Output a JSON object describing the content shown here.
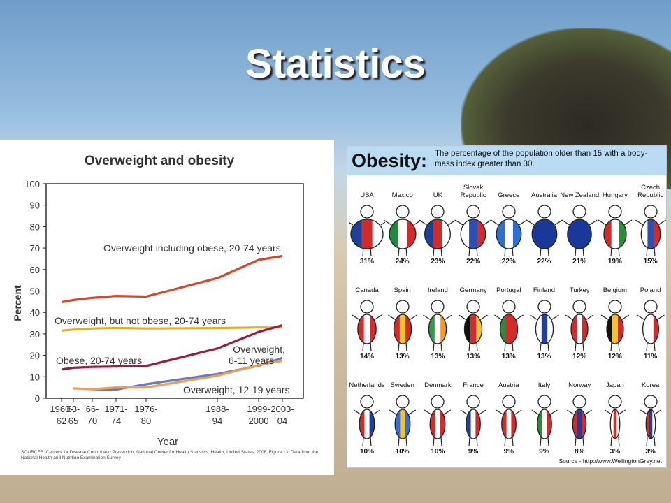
{
  "slide": {
    "title": "Statistics"
  },
  "chart_data": [
    {
      "type": "line",
      "title": "Overweight and obesity",
      "xlabel": "Year",
      "ylabel": "Percent",
      "ylim": [
        0,
        100
      ],
      "yticks": [
        "0",
        "10",
        "20",
        "30",
        "40",
        "50",
        "60",
        "70",
        "80",
        "90",
        "100"
      ],
      "x_ticks": [
        {
          "l1": "1960-",
          "l2": "62"
        },
        {
          "l1": "63-",
          "l2": "65"
        },
        {
          "l1": "66-",
          "l2": "70"
        },
        {
          "l1": "1971-",
          "l2": "74"
        },
        {
          "l1": "1976-",
          "l2": "80"
        },
        {
          "l1": "1988-",
          "l2": "94"
        },
        {
          "l1": "1999-",
          "l2": "2000"
        },
        {
          "l1": "2003-",
          "l2": "04"
        }
      ],
      "grid": false,
      "series": [
        {
          "name": "Overweight including obese, 20-74 years",
          "color": "#d9472b",
          "start_index": 0,
          "values": [
            44.8,
            45.8,
            46.8,
            47.7,
            47.4,
            56.0,
            64.5,
            66.3
          ]
        },
        {
          "name": "Overweight, but not obese, 20-74 years",
          "color": "#d9b12a",
          "start_index": 0,
          "values": [
            31.5,
            32.0,
            32.5,
            32.8,
            32.5,
            32.7,
            33.0,
            33.0
          ]
        },
        {
          "name": "Obese, 20-74 years",
          "color": "#9a1d3f",
          "start_index": 0,
          "values": [
            13.4,
            14.2,
            14.6,
            14.8,
            15.0,
            23.2,
            30.9,
            34.0
          ]
        },
        {
          "name": "Overweight, 6-11 years",
          "color": "#6a7bb6",
          "start_index": 2,
          "values": [
            4.2,
            4.0,
            6.5,
            11.3,
            15.1,
            18.8
          ]
        },
        {
          "name": "Overweight, 12-19 years",
          "color": "#f29e51",
          "start_index": 1,
          "values": [
            4.6,
            4.2,
            5.0,
            5.0,
            10.5,
            15.5,
            17.4
          ]
        }
      ],
      "source": "SOURCES: Centers for Disease Control and Prevention, National Center for Health Statistics, Health, United States, 2006, Figure 13. Data from the National Health and Nutrition Examination Survey"
    },
    {
      "type": "table",
      "title": "Obesity:",
      "subtitle": "The percentage of the population older than 15 with a body-mass index greater than 30.",
      "source": "Source - http://www.WellingtonGrey.net",
      "countries": [
        {
          "name": "USA",
          "pct": "31%",
          "value": 31,
          "colors": [
            "#1f3f99",
            "#d22b2b",
            "#ffffff"
          ]
        },
        {
          "name": "Mexico",
          "pct": "24%",
          "value": 24,
          "colors": [
            "#1e8c3a",
            "#ffffff",
            "#d22b2b"
          ]
        },
        {
          "name": "UK",
          "pct": "23%",
          "value": 23,
          "colors": [
            "#1f3f99",
            "#d22b2b",
            "#ffffff"
          ]
        },
        {
          "name": "Slovak Republic",
          "pct": "22%",
          "value": 22,
          "colors": [
            "#ffffff",
            "#2b4fb3",
            "#d22b2b"
          ]
        },
        {
          "name": "Greece",
          "pct": "22%",
          "value": 22,
          "colors": [
            "#2f6fd0",
            "#ffffff",
            "#2f6fd0"
          ]
        },
        {
          "name": "Australia",
          "pct": "22%",
          "value": 22,
          "colors": [
            "#1a3899",
            "#1a3899",
            "#1a3899"
          ]
        },
        {
          "name": "New Zealand",
          "pct": "21%",
          "value": 21,
          "colors": [
            "#1a3899",
            "#1a3899",
            "#1a3899"
          ]
        },
        {
          "name": "Hungary",
          "pct": "19%",
          "value": 19,
          "colors": [
            "#d22b2b",
            "#ffffff",
            "#2e8b3a"
          ]
        },
        {
          "name": "Czech Republic",
          "pct": "15%",
          "value": 15,
          "colors": [
            "#ffffff",
            "#2b4fb3",
            "#d22b2b"
          ]
        },
        {
          "name": "Canada",
          "pct": "14%",
          "value": 14,
          "colors": [
            "#d22b2b",
            "#ffffff",
            "#d22b2b"
          ]
        },
        {
          "name": "Spain",
          "pct": "13%",
          "value": 13,
          "colors": [
            "#d22b2b",
            "#f2c230",
            "#d22b2b"
          ]
        },
        {
          "name": "Ireland",
          "pct": "13%",
          "value": 13,
          "colors": [
            "#2e9a48",
            "#ffffff",
            "#f29a2e"
          ]
        },
        {
          "name": "Germany",
          "pct": "13%",
          "value": 13,
          "colors": [
            "#111111",
            "#d22b2b",
            "#f2c230"
          ]
        },
        {
          "name": "Portugal",
          "pct": "13%",
          "value": 13,
          "colors": [
            "#2e8b3a",
            "#d22b2b",
            "#d22b2b"
          ]
        },
        {
          "name": "Finland",
          "pct": "13%",
          "value": 13,
          "colors": [
            "#ffffff",
            "#1f3f99",
            "#ffffff"
          ]
        },
        {
          "name": "Turkey",
          "pct": "12%",
          "value": 12,
          "colors": [
            "#d22b2b",
            "#ffffff",
            "#d22b2b"
          ]
        },
        {
          "name": "Belgium",
          "pct": "12%",
          "value": 12,
          "colors": [
            "#111111",
            "#f2c230",
            "#d22b2b"
          ]
        },
        {
          "name": "Poland",
          "pct": "11%",
          "value": 11,
          "colors": [
            "#ffffff",
            "#ffffff",
            "#d22b2b"
          ]
        },
        {
          "name": "Netherlands",
          "pct": "10%",
          "value": 10,
          "colors": [
            "#d22b2b",
            "#ffffff",
            "#1f3f99"
          ]
        },
        {
          "name": "Sweden",
          "pct": "10%",
          "value": 10,
          "colors": [
            "#2f6fd0",
            "#f2c230",
            "#2f6fd0"
          ]
        },
        {
          "name": "Denmark",
          "pct": "10%",
          "value": 10,
          "colors": [
            "#d22b2b",
            "#ffffff",
            "#d22b2b"
          ]
        },
        {
          "name": "France",
          "pct": "9%",
          "value": 9,
          "colors": [
            "#1f3f99",
            "#ffffff",
            "#d22b2b"
          ]
        },
        {
          "name": "Austria",
          "pct": "9%",
          "value": 9,
          "colors": [
            "#d22b2b",
            "#ffffff",
            "#d22b2b"
          ]
        },
        {
          "name": "Italy",
          "pct": "9%",
          "value": 9,
          "colors": [
            "#2e8b3a",
            "#ffffff",
            "#d22b2b"
          ]
        },
        {
          "name": "Norway",
          "pct": "8%",
          "value": 8,
          "colors": [
            "#d22b2b",
            "#1f3f99",
            "#d22b2b"
          ]
        },
        {
          "name": "Japan",
          "pct": "3%",
          "value": 3,
          "colors": [
            "#ffffff",
            "#d22b2b",
            "#ffffff"
          ]
        },
        {
          "name": "Korea",
          "pct": "3%",
          "value": 3,
          "colors": [
            "#d22b2b",
            "#1f3f99",
            "#ffffff"
          ]
        }
      ]
    }
  ]
}
